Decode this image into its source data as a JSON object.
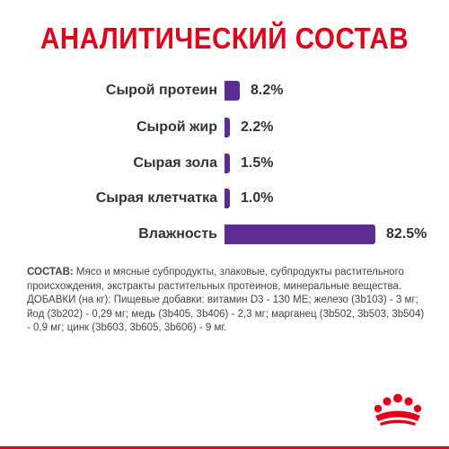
{
  "title": "АНАЛИТИЧЕСКИЙ СОСТАВ",
  "chart_data": {
    "type": "bar",
    "categories": [
      "Сырой протеин",
      "Сырой жир",
      "Сырая зола",
      "Сырая клетчатка",
      "Влажность"
    ],
    "values": [
      8.2,
      2.2,
      1.5,
      1.0,
      82.5
    ],
    "value_labels": [
      "8.2%",
      "2.2%",
      "1.5%",
      "1.0%",
      "82.5%"
    ],
    "title": "АНАЛИТИЧЕСКИЙ СОСТАВ",
    "xlabel": "",
    "ylabel": "",
    "unit": "%",
    "orientation": "horizontal",
    "bar_color": "#5b2d8e",
    "grid": false
  },
  "composition": {
    "lead": "СОСТАВ:",
    "text": " Мясо и мясные субпродукты, злаковые, субпродукты растительного происхождения, экстракты растительных протеинов, минеральные вещества. ДОБАВКИ (на кг): Пищевые добавки: витамин D3 - 130 МЕ; железо (3b103) - 3 мг; йод (3b202) - 0,29 мг; медь (3b405, 3b406) - 2,3 мг; марганец (3b502, 3b503, 3b504) - 0,9 мг; цинк (3b603, 3b605, 3b606) - 9 мг."
  },
  "colors": {
    "title": "#e2001a",
    "bar": "#5b2d8e",
    "text": "#333333",
    "brand": "#e2001a"
  },
  "logo": {
    "icon": "royal-canin-crown-icon"
  }
}
